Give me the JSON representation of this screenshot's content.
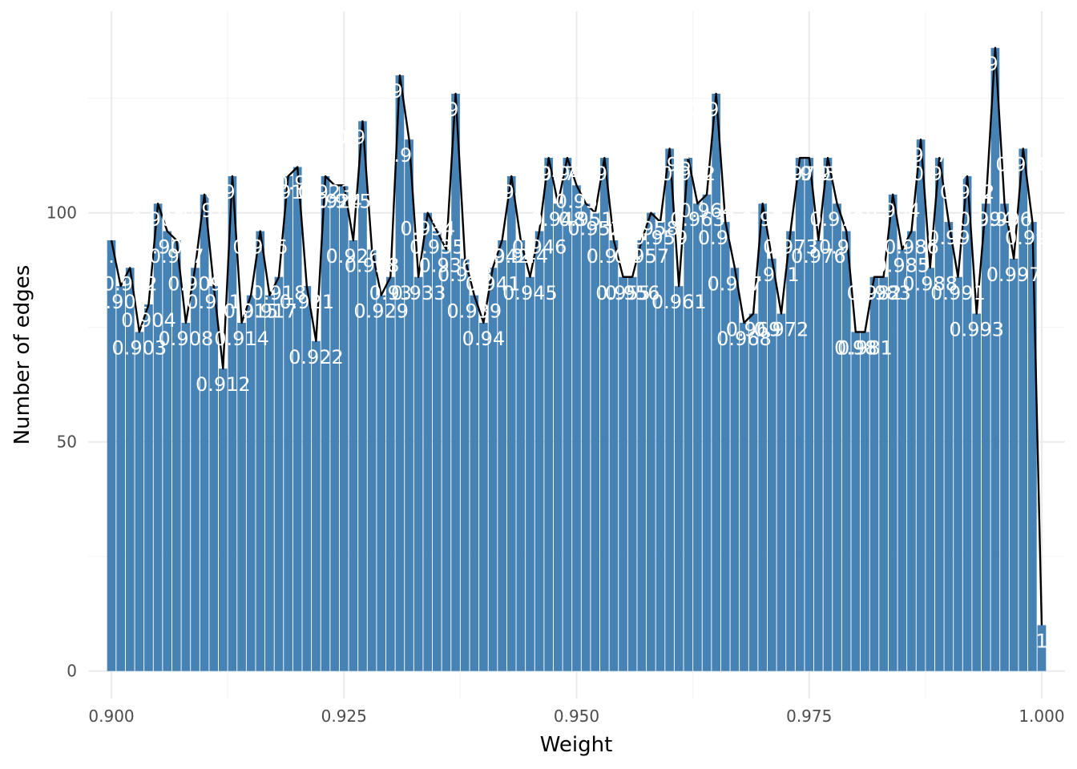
{
  "chart_data": {
    "type": "bar",
    "xlabel": "Weight",
    "ylabel": "Number of edges",
    "xlim": [
      0.8975,
      1.0025
    ],
    "ylim": [
      -6,
      144
    ],
    "xticks": [
      0.9,
      0.925,
      0.95,
      0.975,
      1.0
    ],
    "xtick_labels": [
      "0.900",
      "0.925",
      "0.950",
      "0.975",
      "1.000"
    ],
    "yticks": [
      0,
      50,
      100
    ],
    "ytick_labels": [
      "0",
      "50",
      "100"
    ],
    "grid": true,
    "legend": "none",
    "bar_width": 0.00092,
    "overlay": "line",
    "x": [
      0.9,
      0.901,
      0.902,
      0.903,
      0.904,
      0.905,
      0.906,
      0.907,
      0.908,
      0.909,
      0.91,
      0.911,
      0.912,
      0.913,
      0.914,
      0.915,
      0.916,
      0.917,
      0.918,
      0.919,
      0.92,
      0.921,
      0.922,
      0.923,
      0.924,
      0.925,
      0.926,
      0.927,
      0.928,
      0.929,
      0.93,
      0.931,
      0.932,
      0.933,
      0.934,
      0.935,
      0.936,
      0.937,
      0.938,
      0.939,
      0.94,
      0.941,
      0.942,
      0.943,
      0.944,
      0.945,
      0.946,
      0.947,
      0.948,
      0.949,
      0.95,
      0.951,
      0.952,
      0.953,
      0.954,
      0.955,
      0.956,
      0.957,
      0.958,
      0.959,
      0.96,
      0.961,
      0.962,
      0.963,
      0.964,
      0.965,
      0.966,
      0.967,
      0.968,
      0.969,
      0.97,
      0.971,
      0.972,
      0.973,
      0.974,
      0.975,
      0.976,
      0.977,
      0.978,
      0.979,
      0.98,
      0.981,
      0.982,
      0.983,
      0.984,
      0.985,
      0.986,
      0.987,
      0.988,
      0.989,
      0.99,
      0.991,
      0.992,
      0.993,
      0.994,
      0.995,
      0.996,
      0.997,
      0.998,
      0.999,
      1.0
    ],
    "values": [
      94,
      84,
      88,
      74,
      80,
      102,
      96,
      94,
      76,
      88,
      104,
      84,
      66,
      108,
      76,
      82,
      96,
      82,
      86,
      108,
      110,
      84,
      72,
      108,
      106,
      106,
      94,
      120,
      92,
      82,
      86,
      130,
      116,
      86,
      100,
      96,
      92,
      126,
      90,
      82,
      76,
      88,
      94,
      108,
      94,
      86,
      96,
      112,
      102,
      112,
      106,
      102,
      100,
      112,
      94,
      86,
      86,
      94,
      100,
      98,
      114,
      84,
      112,
      102,
      104,
      126,
      98,
      88,
      76,
      78,
      102,
      90,
      78,
      96,
      112,
      112,
      94,
      112,
      102,
      96,
      74,
      74,
      86,
      86,
      104,
      92,
      96,
      116,
      88,
      112,
      98,
      86,
      108,
      78,
      102,
      136,
      102,
      90,
      114,
      98,
      10
    ],
    "bar_labels": [
      "0.9",
      "0.901",
      "0.902",
      "0.903",
      "0.904",
      "0.905",
      "0.906",
      "0.907",
      "0.908",
      "0.909",
      "0.91",
      "0.911",
      "0.912",
      "0.913",
      "0.914",
      "0.915",
      "0.916",
      "0.917",
      "0.918",
      "0.919",
      "0.92",
      "0.921",
      "0.922",
      "0.923",
      "0.924",
      "0.925",
      "0.926",
      "0.927",
      "0.928",
      "0.929",
      "0.93",
      "0.931",
      "0.932",
      "0.933",
      "0.934",
      "0.935",
      "0.936",
      "0.937",
      "0.938",
      "0.939",
      "0.94",
      "0.941",
      "0.942",
      "0.943",
      "0.944",
      "0.945",
      "0.946",
      "0.947",
      "0.948",
      "0.949",
      "0.95",
      "0.951",
      "0.952",
      "0.953",
      "0.954",
      "0.955",
      "0.956",
      "0.957",
      "0.958",
      "0.959",
      "0.96",
      "0.961",
      "0.962",
      "0.963",
      "0.964",
      "0.965",
      "0.966",
      "0.967",
      "0.968",
      "0.969",
      "0.97",
      "0.971",
      "0.972",
      "0.973",
      "0.974",
      "0.975",
      "0.976",
      "0.977",
      "0.978",
      "0.979",
      "0.98",
      "0.981",
      "0.982",
      "0.983",
      "0.984",
      "0.985",
      "0.986",
      "0.987",
      "0.988",
      "0.989",
      "0.99",
      "0.991",
      "0.992",
      "0.993",
      "0.994",
      "0.995",
      "0.996",
      "0.997",
      "0.998",
      "0.999",
      "1"
    ],
    "colors": {
      "bar": "#4682B4",
      "line": "#000000",
      "label": "#ffffff",
      "grid_major": "#EBEBEB",
      "grid_minor": "#F5F5F5"
    }
  }
}
